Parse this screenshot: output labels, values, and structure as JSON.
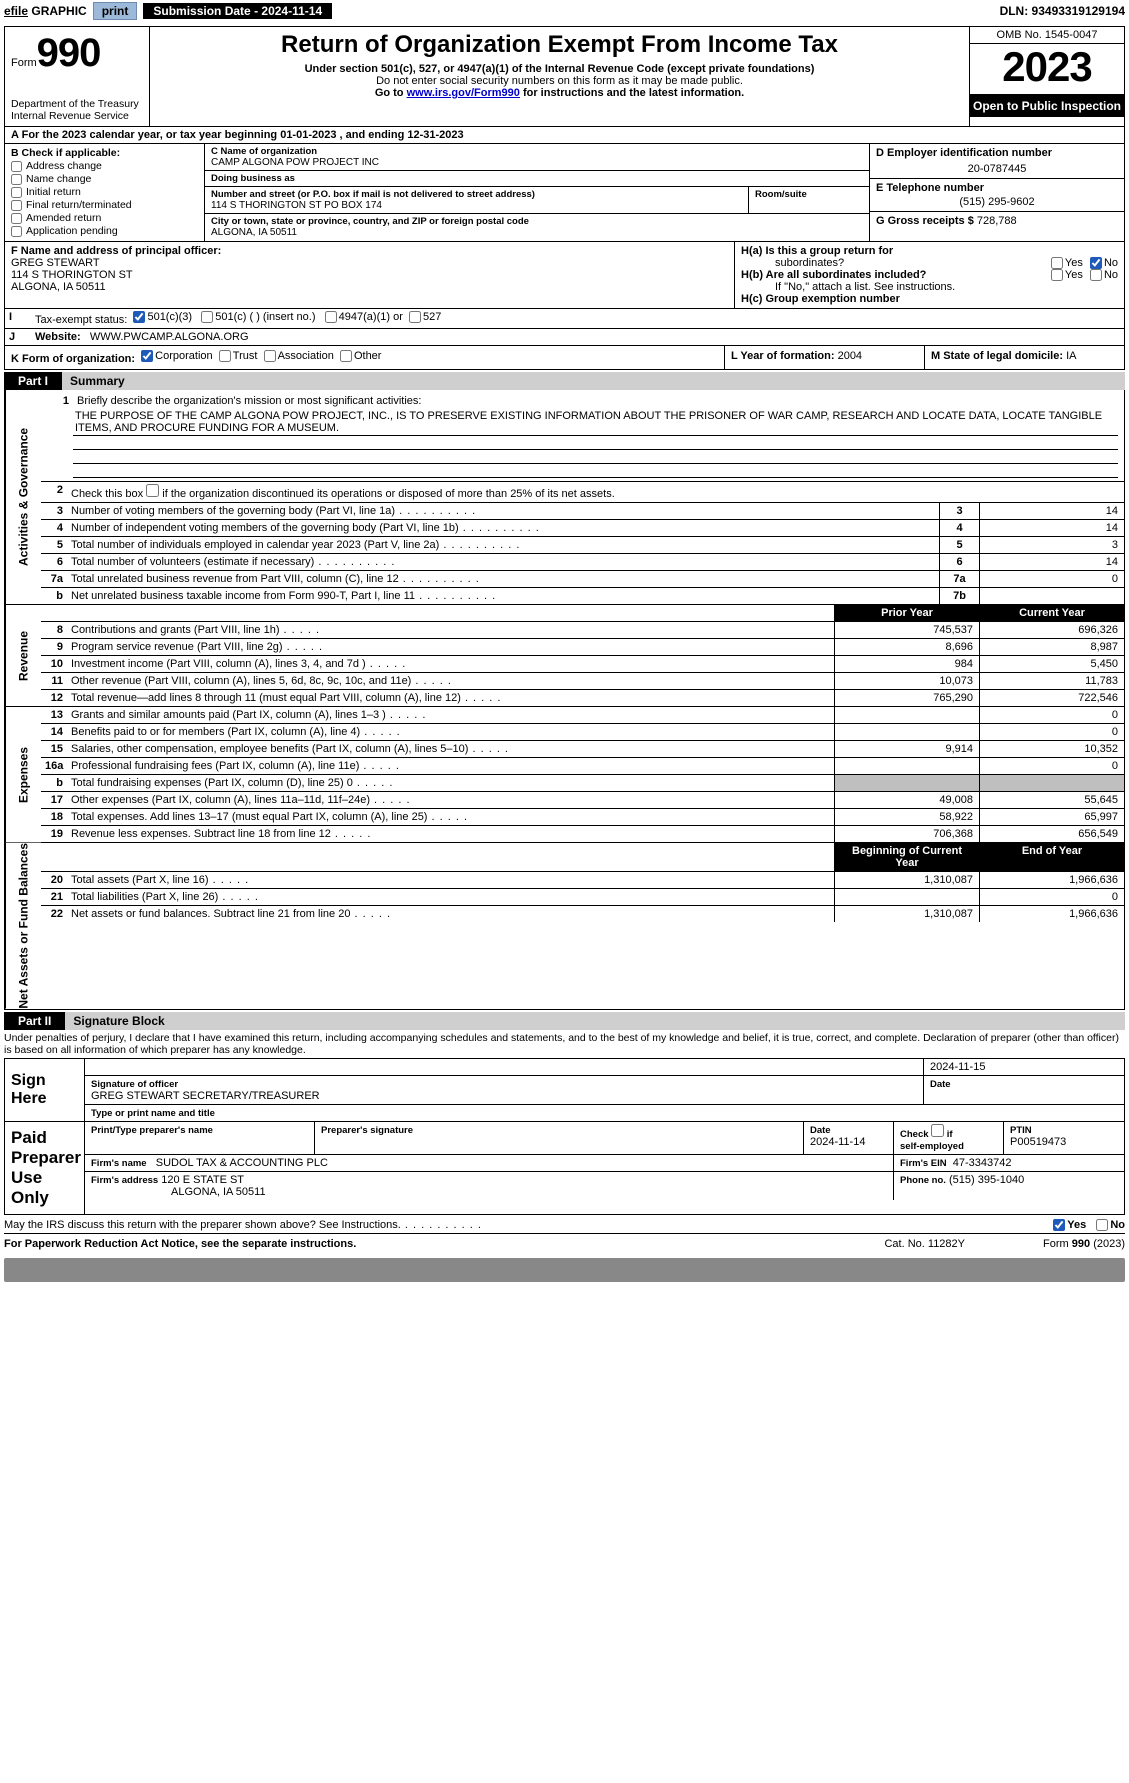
{
  "topbar": {
    "efile": "efile",
    "graphic": "GRAPHIC",
    "print": "print",
    "submission_label": "Submission Date - 2024-11-14",
    "dln": "DLN: 93493319129194"
  },
  "header": {
    "form_word": "Form",
    "form_num": "990",
    "dept": "Department of the Treasury\nInternal Revenue Service",
    "title": "Return of Organization Exempt From Income Tax",
    "sub1": "Under section 501(c), 527, or 4947(a)(1) of the Internal Revenue Code (except private foundations)",
    "sub2": "Do not enter social security numbers on this form as it may be made public.",
    "sub3_pre": "Go to ",
    "sub3_link": "www.irs.gov/Form990",
    "sub3_post": " for instructions and the latest information.",
    "omb": "OMB No. 1545-0047",
    "year": "2023",
    "inspect": "Open to Public Inspection"
  },
  "lineA": "For the 2023 calendar year, or tax year beginning 01-01-2023    , and ending 12-31-2023",
  "sectionB": {
    "title": "B Check if applicable:",
    "items": [
      "Address change",
      "Name change",
      "Initial return",
      "Final return/terminated",
      "Amended return",
      "Application pending"
    ]
  },
  "sectionC": {
    "name_label": "C Name of organization",
    "name": "CAMP ALGONA POW PROJECT INC",
    "dba_label": "Doing business as",
    "dba": "",
    "street_label": "Number and street (or P.O. box if mail is not delivered to street address)",
    "street": "114 S THORINGTON ST PO BOX 174",
    "room_label": "Room/suite",
    "room": "",
    "city_label": "City or town, state or province, country, and ZIP or foreign postal code",
    "city": "ALGONA, IA  50511"
  },
  "sectionD": {
    "label": "D Employer identification number",
    "value": "20-0787445"
  },
  "sectionE": {
    "label": "E Telephone number",
    "value": "(515) 295-9602"
  },
  "sectionG": {
    "label": "G Gross receipts $",
    "value": "728,788"
  },
  "sectionF": {
    "label": "F  Name and address of principal officer:",
    "name": "GREG STEWART",
    "addr1": "114 S THORINGTON ST",
    "addr2": "ALGONA, IA  50511"
  },
  "sectionH": {
    "a": "H(a)  Is this a group return for",
    "a2": "subordinates?",
    "b": "H(b)  Are all subordinates included?",
    "bnote": "If \"No,\" attach a list. See instructions.",
    "c": "H(c)  Group exemption number",
    "yes": "Yes",
    "no": "No"
  },
  "sectionI": {
    "label": "Tax-exempt status:",
    "c3": "501(c)(3)",
    "c": "501(c) (  ) (insert no.)",
    "a": "4947(a)(1) or",
    "d": "527"
  },
  "sectionJ": {
    "label": "Website:",
    "value": "WWW.PWCAMP.ALGONA.ORG"
  },
  "sectionK": {
    "label": "K Form of organization:",
    "corp": "Corporation",
    "trust": "Trust",
    "assoc": "Association",
    "other": "Other"
  },
  "sectionL": {
    "label": "L Year of formation:",
    "value": "2004"
  },
  "sectionM": {
    "label": "M State of legal domicile:",
    "value": "IA"
  },
  "partI": {
    "tag": "Part I",
    "title": "Summary",
    "l1_intro": "Briefly describe the organization's mission or most significant activities:",
    "l1_text": "THE PURPOSE OF THE CAMP ALGONA POW PROJECT, INC., IS TO PRESERVE EXISTING INFORMATION ABOUT THE PRISONER OF WAR CAMP, RESEARCH AND LOCATE DATA, LOCATE TANGIBLE ITEMS, AND PROCURE FUNDING FOR A MUSEUM.",
    "l2": "Check this box   if the organization discontinued its operations or disposed of more than 25% of its net assets.",
    "gov_label": "Activities & Governance",
    "rev_label": "Revenue",
    "exp_label": "Expenses",
    "na_label": "Net Assets or Fund Balances",
    "prior": "Prior Year",
    "current": "Current Year",
    "boy": "Beginning of Current Year",
    "eoy": "End of Year",
    "rows_gov": [
      {
        "n": "3",
        "t": "Number of voting members of the governing body (Part VI, line 1a)",
        "box": "3",
        "v": "14"
      },
      {
        "n": "4",
        "t": "Number of independent voting members of the governing body (Part VI, line 1b)",
        "box": "4",
        "v": "14"
      },
      {
        "n": "5",
        "t": "Total number of individuals employed in calendar year 2023 (Part V, line 2a)",
        "box": "5",
        "v": "3"
      },
      {
        "n": "6",
        "t": "Total number of volunteers (estimate if necessary)",
        "box": "6",
        "v": "14"
      },
      {
        "n": "7a",
        "t": "Total unrelated business revenue from Part VIII, column (C), line 12",
        "box": "7a",
        "v": "0"
      },
      {
        "n": "b",
        "t": "Net unrelated business taxable income from Form 990-T, Part I, line 11",
        "box": "7b",
        "v": ""
      }
    ],
    "rows_rev": [
      {
        "n": "8",
        "t": "Contributions and grants (Part VIII, line 1h)",
        "p": "745,537",
        "c": "696,326"
      },
      {
        "n": "9",
        "t": "Program service revenue (Part VIII, line 2g)",
        "p": "8,696",
        "c": "8,987"
      },
      {
        "n": "10",
        "t": "Investment income (Part VIII, column (A), lines 3, 4, and 7d )",
        "p": "984",
        "c": "5,450"
      },
      {
        "n": "11",
        "t": "Other revenue (Part VIII, column (A), lines 5, 6d, 8c, 9c, 10c, and 11e)",
        "p": "10,073",
        "c": "11,783"
      },
      {
        "n": "12",
        "t": "Total revenue—add lines 8 through 11 (must equal Part VIII, column (A), line 12)",
        "p": "765,290",
        "c": "722,546"
      }
    ],
    "rows_exp": [
      {
        "n": "13",
        "t": "Grants and similar amounts paid (Part IX, column (A), lines 1–3 )",
        "p": "",
        "c": "0"
      },
      {
        "n": "14",
        "t": "Benefits paid to or for members (Part IX, column (A), line 4)",
        "p": "",
        "c": "0"
      },
      {
        "n": "15",
        "t": "Salaries, other compensation, employee benefits (Part IX, column (A), lines 5–10)",
        "p": "9,914",
        "c": "10,352"
      },
      {
        "n": "16a",
        "t": "Professional fundraising fees (Part IX, column (A), line 11e)",
        "p": "",
        "c": "0"
      },
      {
        "n": "b",
        "t": "Total fundraising expenses (Part IX, column (D), line 25) 0",
        "p": "SHADE",
        "c": "SHADE"
      },
      {
        "n": "17",
        "t": "Other expenses (Part IX, column (A), lines 11a–11d, 11f–24e)",
        "p": "49,008",
        "c": "55,645"
      },
      {
        "n": "18",
        "t": "Total expenses. Add lines 13–17 (must equal Part IX, column (A), line 25)",
        "p": "58,922",
        "c": "65,997"
      },
      {
        "n": "19",
        "t": "Revenue less expenses. Subtract line 18 from line 12",
        "p": "706,368",
        "c": "656,549"
      }
    ],
    "rows_na": [
      {
        "n": "20",
        "t": "Total assets (Part X, line 16)",
        "p": "1,310,087",
        "c": "1,966,636"
      },
      {
        "n": "21",
        "t": "Total liabilities (Part X, line 26)",
        "p": "",
        "c": "0"
      },
      {
        "n": "22",
        "t": "Net assets or fund balances. Subtract line 21 from line 20",
        "p": "1,310,087",
        "c": "1,966,636"
      }
    ]
  },
  "partII": {
    "tag": "Part II",
    "title": "Signature Block",
    "decl": "Under penalties of perjury, I declare that I have examined this return, including accompanying schedules and statements, and to the best of my knowledge and belief, it is true, correct, and complete. Declaration of preparer (other than officer) is based on all information of which preparer has any knowledge.",
    "sign_here": "Sign Here",
    "sig_label": "Signature of officer",
    "sig_name": "GREG STEWART  SECRETARY/TREASURER",
    "sig_type": "Type or print name and title",
    "date_label": "Date",
    "date": "2024-11-15",
    "paid": "Paid Preparer Use Only",
    "prep_name_l": "Print/Type preparer's name",
    "prep_name": "",
    "prep_sig_l": "Preparer's signature",
    "prep_date_l": "Date",
    "prep_date": "2024-11-14",
    "check_self": "Check    if self-employed",
    "ptin_l": "PTIN",
    "ptin": "P00519473",
    "firm_name_l": "Firm's name",
    "firm_name": "SUDOL TAX & ACCOUNTING PLC",
    "firm_ein_l": "Firm's EIN",
    "firm_ein": "47-3343742",
    "firm_addr_l": "Firm's address",
    "firm_addr1": "120 E STATE ST",
    "firm_addr2": "ALGONA, IA  50511",
    "phone_l": "Phone no.",
    "phone": "(515) 395-1040",
    "discuss": "May the IRS discuss this return with the preparer shown above? See Instructions.",
    "yes": "Yes",
    "no": "No"
  },
  "footer": {
    "pra": "For Paperwork Reduction Act Notice, see the separate instructions.",
    "cat": "Cat. No. 11282Y",
    "form": "Form 990 (2023)"
  },
  "colors": {
    "btn_bg": "#9db9d9",
    "black": "#000000",
    "shade": "#bfbfbf",
    "gray": "#cfcfcf",
    "blue": "#1e5bb8"
  }
}
